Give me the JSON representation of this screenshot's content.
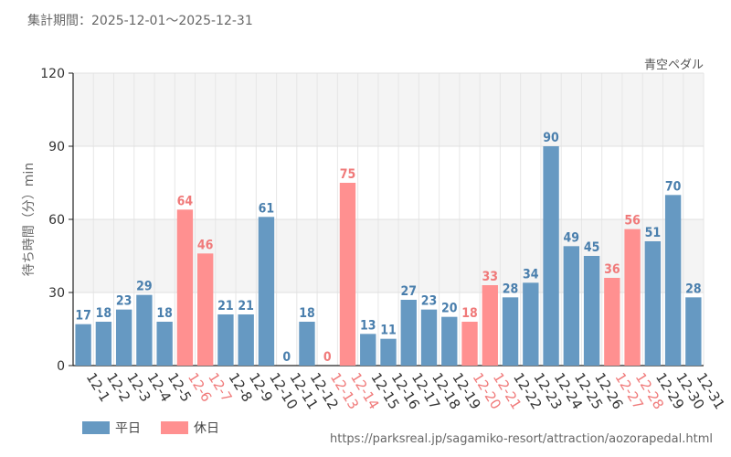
{
  "header": {
    "period": "集計期間：2025-12-01～2025-12-31"
  },
  "chart_data": {
    "type": "bar",
    "title": "青空ペダル",
    "xlabel": "",
    "ylabel": "待ち時間（分）min",
    "ylim": [
      0,
      120
    ],
    "yticks": [
      0,
      30,
      60,
      90,
      120
    ],
    "categories": [
      "12-1",
      "12-2",
      "12-3",
      "12-4",
      "12-5",
      "12-6",
      "12-7",
      "12-8",
      "12-9",
      "12-10",
      "12-11",
      "12-12",
      "12-13",
      "12-14",
      "12-15",
      "12-16",
      "12-17",
      "12-18",
      "12-19",
      "12-20",
      "12-21",
      "12-22",
      "12-23",
      "12-24",
      "12-25",
      "12-26",
      "12-27",
      "12-28",
      "12-29",
      "12-30",
      "12-31"
    ],
    "values": [
      17,
      18,
      23,
      29,
      18,
      64,
      46,
      21,
      21,
      61,
      0,
      18,
      0,
      75,
      13,
      11,
      27,
      23,
      20,
      18,
      33,
      28,
      34,
      90,
      49,
      45,
      36,
      56,
      51,
      70,
      28
    ],
    "day_type": [
      "平日",
      "平日",
      "平日",
      "平日",
      "平日",
      "休日",
      "休日",
      "平日",
      "平日",
      "平日",
      "平日",
      "平日",
      "休日",
      "休日",
      "平日",
      "平日",
      "平日",
      "平日",
      "平日",
      "休日",
      "休日",
      "平日",
      "平日",
      "平日",
      "平日",
      "平日",
      "休日",
      "休日",
      "平日",
      "平日",
      "平日"
    ],
    "legend": [
      {
        "name": "平日",
        "color": "#6699c2"
      },
      {
        "name": "休日",
        "color": "#ff9090"
      }
    ],
    "colors": {
      "weekday_bar": "#6699c2",
      "weekday_text": "#4a7fad",
      "holiday_bar": "#ff9090",
      "holiday_text": "#f07a7a"
    }
  },
  "footer": {
    "source_url": "https://parksreal.jp/sagamiko-resort/attraction/aozorapedal.html"
  }
}
